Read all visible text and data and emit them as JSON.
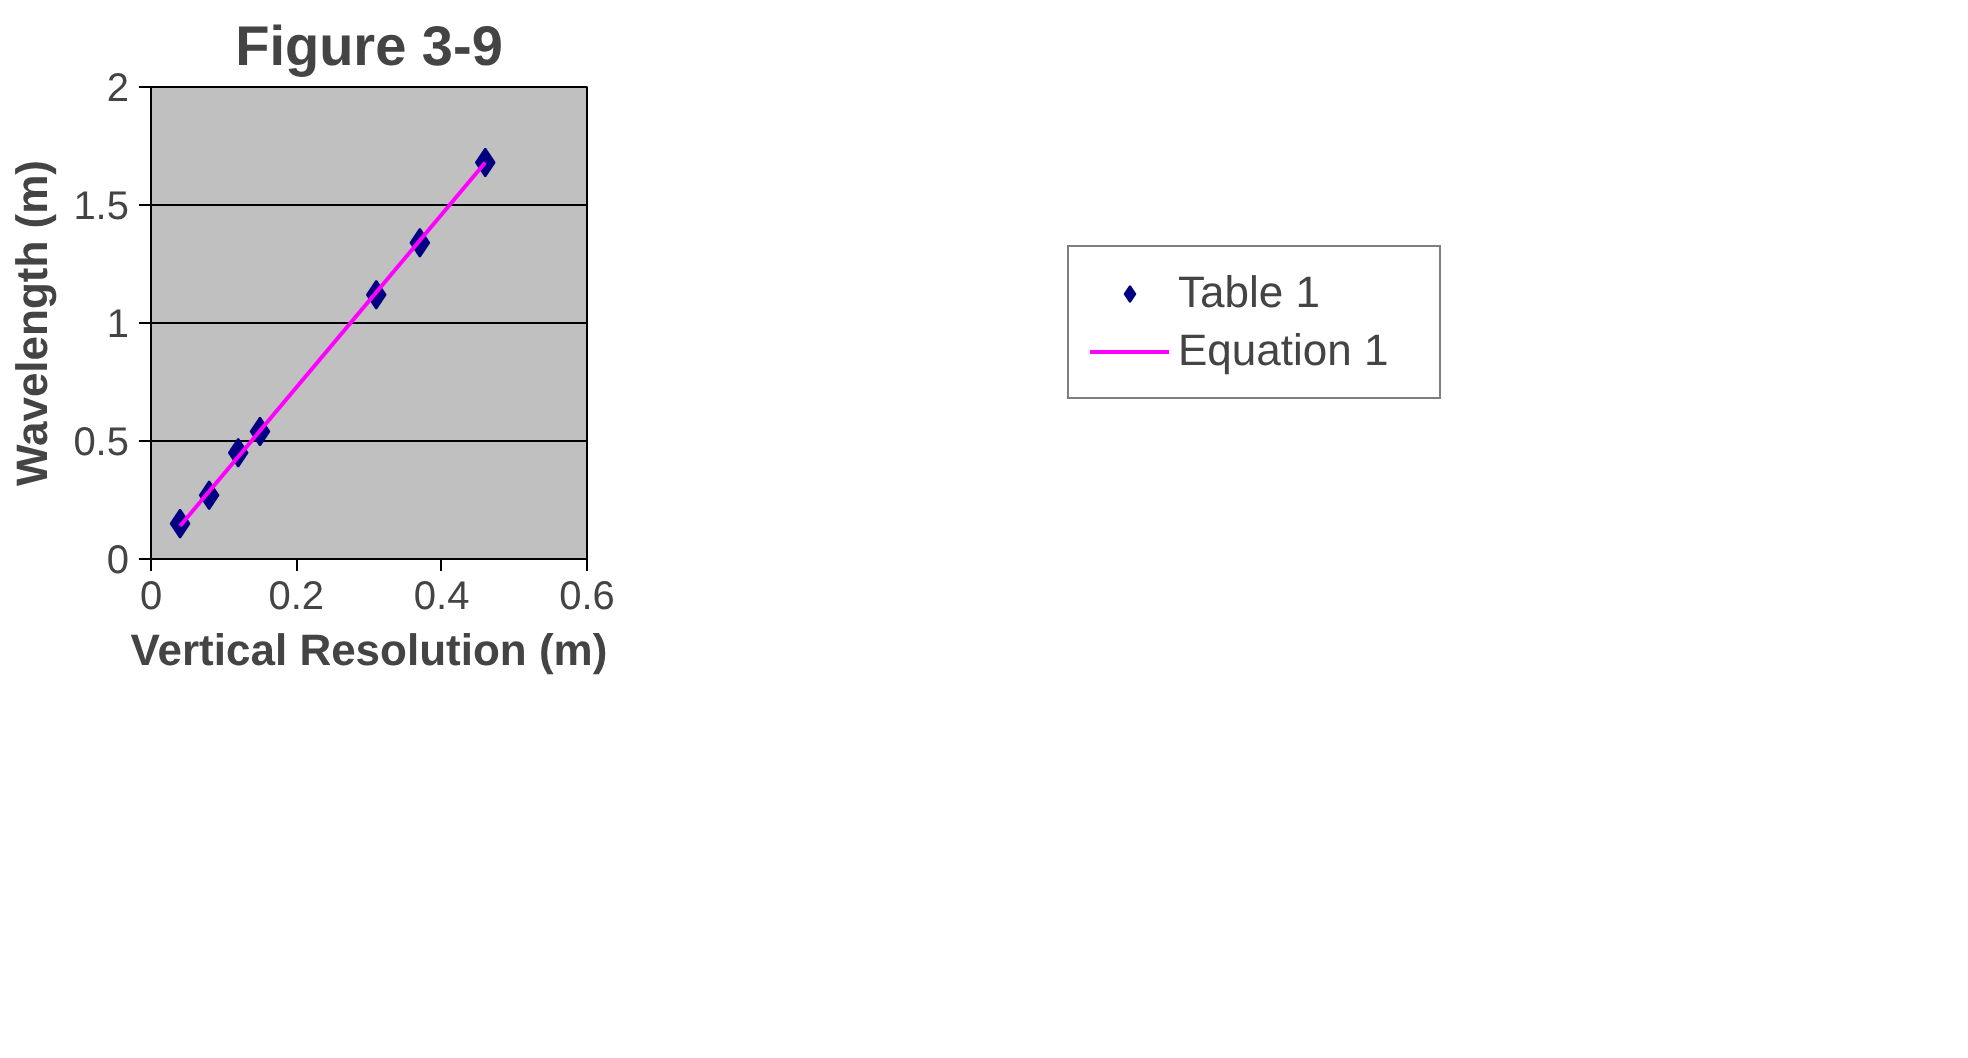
{
  "chart_data": {
    "type": "scatter",
    "title": "Figure 3-9",
    "xlabel": "Vertical Resolution (m)",
    "ylabel": "Wavelength (m)",
    "xlim": [
      0,
      0.6
    ],
    "xticks": [
      0,
      0.2,
      0.4,
      0.6
    ],
    "ylim": [
      0,
      2
    ],
    "yticks": [
      0,
      0.5,
      1,
      1.5,
      2
    ],
    "grid": "y",
    "legend": "right",
    "series": [
      {
        "name": "Table 1",
        "marker": "diamond",
        "color": "#000080",
        "x": [
          0.04,
          0.08,
          0.12,
          0.15,
          0.31,
          0.37,
          0.46
        ],
        "values": [
          0.15,
          0.27,
          0.45,
          0.54,
          1.12,
          1.34,
          1.68
        ]
      },
      {
        "name": "Equation 1",
        "type": "line",
        "color": "#ff00ff",
        "x": [
          0.04,
          0.46
        ],
        "values": [
          0.14,
          1.68
        ],
        "marker": "none",
        "line_style": "solid"
      }
    ]
  }
}
